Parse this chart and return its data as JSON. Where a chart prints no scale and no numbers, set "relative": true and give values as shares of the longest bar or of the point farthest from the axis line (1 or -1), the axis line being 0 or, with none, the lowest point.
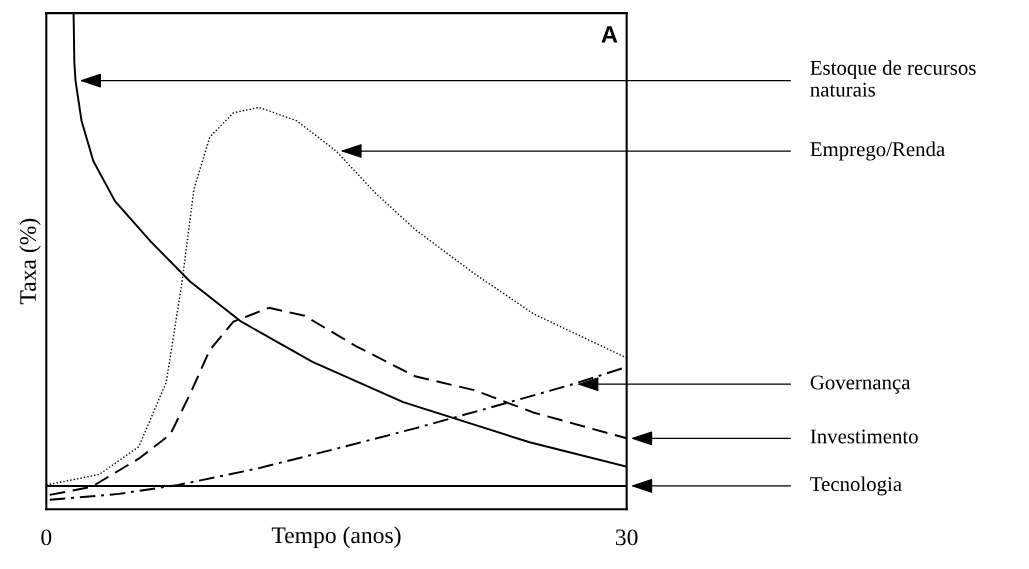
{
  "chart_data": {
    "type": "line",
    "relative": true,
    "xlabel": "Tempo (anos)",
    "ylabel": "Taxa (%)",
    "xlim": [
      0,
      30
    ],
    "xticks": [
      0,
      30
    ],
    "marker": "none",
    "series": [
      {
        "color": "#000000",
        "line_style": "solid",
        "x": [
          1.41,
          1.45,
          1.51,
          1.82,
          2.43,
          3.55,
          5.39,
          7.43,
          10.08,
          13.76,
          18.45,
          24.98,
          30
        ],
        "values": [
          1.0,
          0.9,
          0.864,
          0.783,
          0.702,
          0.621,
          0.54,
          0.459,
          0.378,
          0.297,
          0.216,
          0.135,
          0.086
        ]
      },
      {
        "color": "#000000",
        "line_style": "dotted",
        "x": [
          0,
          2.73,
          4.78,
          6.2,
          7.02,
          7.63,
          8.45,
          9.67,
          11.0,
          12.94,
          14.98,
          17.02,
          19.06,
          22.12,
          25.18,
          30
        ],
        "values": [
          0.049,
          0.07,
          0.126,
          0.256,
          0.459,
          0.645,
          0.75,
          0.799,
          0.81,
          0.783,
          0.722,
          0.637,
          0.564,
          0.475,
          0.394,
          0.305
        ]
      },
      {
        "color": "#000000",
        "line_style": "dashed",
        "x": [
          0.18,
          2.33,
          4.78,
          6.41,
          7.43,
          8.45,
          9.67,
          11.51,
          13.35,
          16.0,
          19.06,
          22.12,
          25.18,
          30
        ],
        "values": [
          0.029,
          0.045,
          0.102,
          0.151,
          0.232,
          0.321,
          0.378,
          0.406,
          0.39,
          0.329,
          0.268,
          0.24,
          0.195,
          0.143
        ]
      },
      {
        "color": "#000000",
        "line_style": "dashdot",
        "x": [
          0.18,
          3.76,
          6.82,
          10.9,
          14.98,
          19.06,
          23.14,
          27.22,
          29.78
        ],
        "values": [
          0.019,
          0.031,
          0.049,
          0.082,
          0.122,
          0.163,
          0.207,
          0.252,
          0.284
        ]
      },
      {
        "color": "#000000",
        "line_style": "solid",
        "x": [
          0,
          30
        ],
        "values": [
          0.047,
          0.047
        ]
      }
    ],
    "annotations": [
      "A",
      {
        "text": "Estoque de recursos naturais",
        "x": 1.51,
        "y": 0.864
      },
      {
        "text": "Emprego/Renda",
        "x": 14.98,
        "y": 0.722
      },
      {
        "text": "Governança",
        "x": 27.22,
        "y": 0.252
      },
      {
        "text": "Investimento",
        "x": 30,
        "y": 0.143
      },
      {
        "text": "Tecnologia",
        "x": 30,
        "y": 0.047
      }
    ]
  }
}
